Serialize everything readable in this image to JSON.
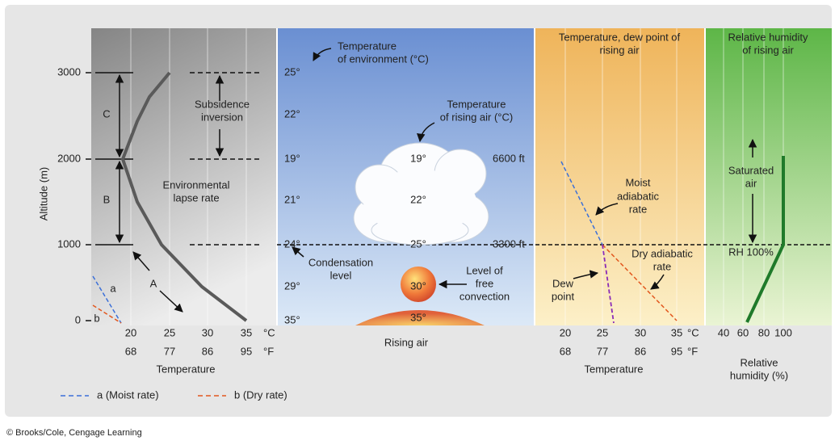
{
  "altitude_axis": {
    "label": "Altitude (m)",
    "ticks": [
      "0",
      "1000",
      "2000",
      "3000"
    ]
  },
  "panel1": {
    "celsius_ticks": [
      "20",
      "25",
      "30",
      "35"
    ],
    "celsius_unit": "°C",
    "fahrenheit_ticks": [
      "68",
      "77",
      "86",
      "95"
    ],
    "fahrenheit_unit": "°F",
    "axis_label": "Temperature",
    "layer_labels": [
      "C",
      "B",
      "A"
    ],
    "lapse_rate_label": [
      "Environmental",
      "lapse rate"
    ],
    "inversion_label": [
      "Subsidence",
      "inversion"
    ],
    "rate_labels": [
      "a",
      "b"
    ]
  },
  "panel2": {
    "environment_label": [
      "Temperature",
      "of environment (°C)"
    ],
    "environment_temps": [
      "25°",
      "22°",
      "19°",
      "21°",
      "24°",
      "29°",
      "35°"
    ],
    "rising_air_label": [
      "Temperature",
      "of rising air (°C)"
    ],
    "rising_air_temps": [
      "19°",
      "22°",
      "25°",
      "30°",
      "35°"
    ],
    "heights": [
      "6600 ft",
      "3300 ft"
    ],
    "condensation_label": [
      "Condensation",
      "level"
    ],
    "convection_label": [
      "Level of",
      "free",
      "convection"
    ],
    "axis_label": "Rising air"
  },
  "panel3": {
    "title": [
      "Temperature, dew point of",
      "rising air"
    ],
    "celsius_ticks": [
      "20",
      "25",
      "30",
      "35"
    ],
    "celsius_unit": "°C",
    "fahrenheit_ticks": [
      "68",
      "77",
      "86",
      "95"
    ],
    "fahrenheit_unit": "°F",
    "moist_label": [
      "Moist",
      "adiabatic",
      "rate"
    ],
    "dry_label": [
      "Dry adiabatic",
      "rate"
    ],
    "dew_label": [
      "Dew",
      "point"
    ],
    "axis_label": "Temperature"
  },
  "panel4": {
    "title": [
      "Relative humidity",
      "of rising air"
    ],
    "ticks": [
      "40",
      "60",
      "80",
      "100"
    ],
    "saturated_label": [
      "Saturated",
      "air"
    ],
    "rh_label": "RH 100%",
    "axis_label": [
      "Relative",
      "humidity (%)"
    ]
  },
  "legend": [
    "a (Moist rate)",
    "b (Dry rate)"
  ],
  "credit": "© Brooks/Cole, Cengage Learning"
}
